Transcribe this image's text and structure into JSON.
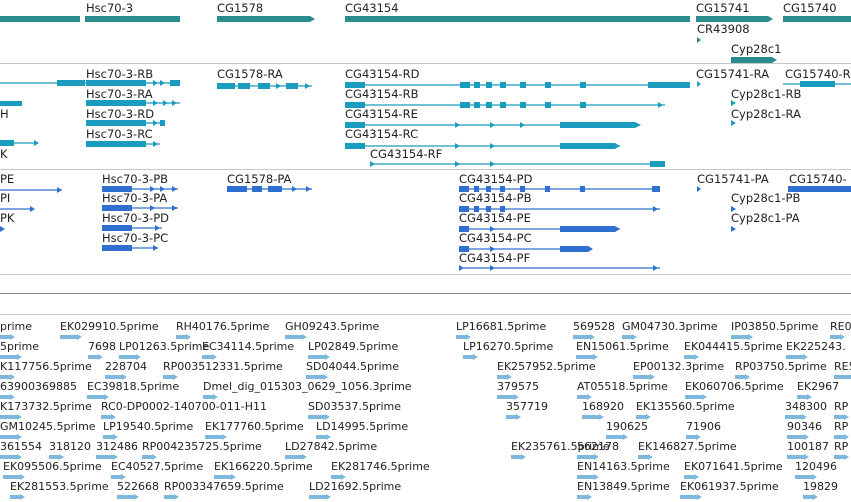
{
  "colors": {
    "gene": "#2a8c8c",
    "transcript": "#1a9cbf",
    "protein": "#2f6fd1",
    "est": "#7fb8dc"
  },
  "tracks": {
    "genes": [
      {
        "label": "Hsc70-3"
      },
      {
        "label": "CG1578"
      },
      {
        "label": "CG43154"
      },
      {
        "label": "CG15741"
      },
      {
        "label": "CG15740"
      },
      {
        "label": "CR43908"
      },
      {
        "label": "Cyp28c1"
      }
    ],
    "transcripts": [
      {
        "label": "Hsc70-3-RB"
      },
      {
        "label": "Hsc70-3-RA"
      },
      {
        "label": "Hsc70-3-RD"
      },
      {
        "label": "Hsc70-3-RC"
      },
      {
        "label": "CG1578-RA"
      },
      {
        "label": "CG43154-RD"
      },
      {
        "label": "CG43154-RB"
      },
      {
        "label": "CG43154-RE"
      },
      {
        "label": "CG43154-RC"
      },
      {
        "label": "CG43154-RF"
      },
      {
        "label": "CG15741-RA"
      },
      {
        "label": "CG15740-R"
      },
      {
        "label": "Cyp28c1-RB"
      },
      {
        "label": "Cyp28c1-RA"
      },
      {
        "label": "H"
      },
      {
        "label": "K"
      }
    ],
    "proteins": [
      {
        "label": "PE"
      },
      {
        "label": "PI"
      },
      {
        "label": "PK"
      },
      {
        "label": "Hsc70-3-PB"
      },
      {
        "label": "Hsc70-3-PA"
      },
      {
        "label": "Hsc70-3-PD"
      },
      {
        "label": "Hsc70-3-PC"
      },
      {
        "label": "CG1578-PA"
      },
      {
        "label": "CG43154-PD"
      },
      {
        "label": "CG43154-PB"
      },
      {
        "label": "CG43154-PE"
      },
      {
        "label": "CG43154-PC"
      },
      {
        "label": "CG43154-PF"
      },
      {
        "label": "CG15741-PA"
      },
      {
        "label": "CG15740-"
      },
      {
        "label": "Cyp28c1-PB"
      },
      {
        "label": "Cyp28c1-PA"
      }
    ],
    "ests": [
      "prime",
      "EK029910.5prime",
      "RH40176.5prime",
      "GH09243.5prime",
      "LP16681.5prime",
      "569528",
      "GM04730.3prime",
      "IP03850.5prime",
      "RE0",
      "5prime",
      "7698",
      "LP01263.5prime",
      "EC34114.5prime",
      "LP02849.5prime",
      "LP16270.5prime",
      "EN15061.5prime",
      "EK044415.5prime",
      "EK225243.",
      "K117756.5prime",
      "228704",
      "RP003512331.5prime",
      "SD04044.5prime",
      "EK257952.5prime",
      "EP00132.3prime",
      "RP03750.5prime",
      "RE5",
      "63900369885",
      "EC39818.5prime",
      "Dmel_dig_015303_0629_1056.3prime",
      "379575",
      "AT05518.5prime",
      "EK060706.5prime",
      "EK2967",
      "K173732.5prime",
      "RC0-DP0002-140700-011-H11",
      "SD03537.5prime",
      "357719",
      "168920",
      "EK135560.5prime",
      "348300",
      "RP",
      "GM10245.5prime",
      "LP19540.5prime",
      "EK177760.5prime",
      "LD14995.5prime",
      "190625",
      "71906",
      "90346",
      "RP",
      "361554",
      "318120",
      "312486",
      "RP004235725.5prime",
      "LD27842.5prime",
      "EK235761.5prime",
      "100187",
      "RP",
      "562178",
      "EK146827.5prime",
      "EK095506.5prime",
      "EC40527.5prime",
      "EK166220.5prime",
      "EK281746.5prime",
      "EN14163.5prime",
      "EK071641.5prime",
      "120496",
      "EK281553.5prime",
      "522668",
      "RP003347659.5prime",
      "LD21692.5prime",
      "EN13849.5prime",
      "EK061937.5prime",
      "19829"
    ]
  }
}
